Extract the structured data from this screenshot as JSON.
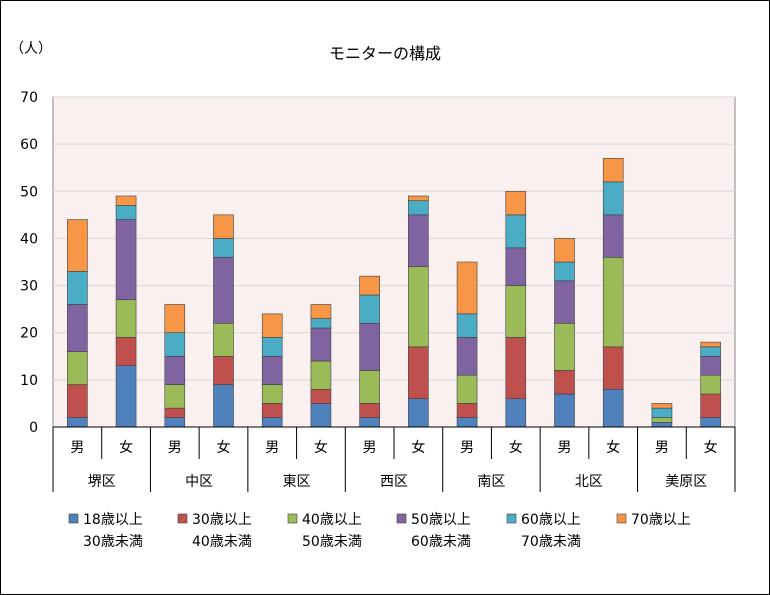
{
  "chart_data": {
    "type": "bar",
    "stacked": true,
    "title": "モニターの構成",
    "ylabel": "（人）",
    "ylim": [
      0,
      70
    ],
    "yticks": [
      0,
      10,
      20,
      30,
      40,
      50,
      60,
      70
    ],
    "grid": true,
    "legend_position": "bottom",
    "districts": [
      "堺区",
      "中区",
      "東区",
      "西区",
      "南区",
      "北区",
      "美原区"
    ],
    "genders": [
      "男",
      "女"
    ],
    "categories": [
      "堺区 男",
      "堺区 女",
      "中区 男",
      "中区 女",
      "東区 男",
      "東区 女",
      "西区 男",
      "西区 女",
      "南区 男",
      "南区 女",
      "北区 男",
      "北区 女",
      "美原区 男",
      "美原区 女"
    ],
    "series": [
      {
        "name": "18歳以上\n30歳未満",
        "color": "#4f81bd",
        "values": [
          2,
          13,
          2,
          9,
          2,
          5,
          2,
          6,
          2,
          6,
          7,
          8,
          1,
          2
        ]
      },
      {
        "name": "30歳以上\n40歳未満",
        "color": "#c0504d",
        "values": [
          7,
          6,
          2,
          6,
          3,
          3,
          3,
          11,
          3,
          13,
          5,
          9,
          0,
          5
        ]
      },
      {
        "name": "40歳以上\n50歳未満",
        "color": "#9bbb59",
        "values": [
          7,
          8,
          5,
          7,
          4,
          6,
          7,
          17,
          6,
          11,
          10,
          19,
          1,
          4
        ]
      },
      {
        "name": "50歳以上\n60歳未満",
        "color": "#8064a2",
        "values": [
          10,
          17,
          6,
          14,
          6,
          7,
          10,
          11,
          8,
          8,
          9,
          9,
          0,
          4
        ]
      },
      {
        "name": "60歳以上\n70歳未満",
        "color": "#4bacc6",
        "values": [
          7,
          3,
          5,
          4,
          4,
          2,
          6,
          3,
          5,
          7,
          4,
          7,
          2,
          2
        ]
      },
      {
        "name": "70歳以上",
        "color": "#f79646",
        "values": [
          11,
          2,
          6,
          5,
          5,
          3,
          4,
          1,
          11,
          5,
          5,
          5,
          1,
          1
        ]
      }
    ]
  }
}
